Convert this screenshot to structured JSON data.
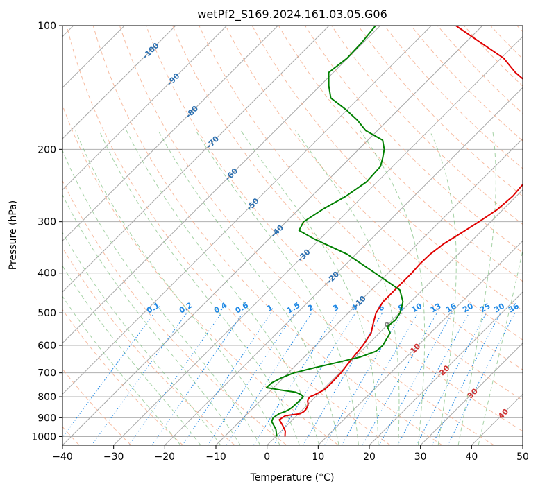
{
  "chart_data": {
    "type": "line",
    "title": "wetPf2_S169.2024.161.03.05.G06",
    "xlabel": "Temperature (°C)",
    "ylabel": "Pressure (hPa)",
    "xlim": [
      -40,
      50
    ],
    "ylim": [
      1050,
      100
    ],
    "y_scale": "log",
    "grid": true,
    "x_ticks": [
      -40,
      -30,
      -20,
      -10,
      0,
      10,
      20,
      30,
      40,
      50
    ],
    "y_ticks": [
      1000,
      900,
      800,
      700,
      600,
      500,
      400,
      300,
      200,
      100
    ],
    "colors": {
      "temperature": "#e00000",
      "dewpoint": "#008000",
      "dry_adiabat": "#f4a582",
      "moist_adiabat": "#7fbf7f",
      "mixing_ratio": "#1e88e5",
      "isotherm_label": "#2b6fb0",
      "isotherm_label_warm": "#d03030"
    },
    "isotherm_labels": [
      {
        "text": "-100",
        "t": -100,
        "p": 115
      },
      {
        "text": "-90",
        "t": -90,
        "p": 135
      },
      {
        "text": "-80",
        "t": -80,
        "p": 162
      },
      {
        "text": "-70",
        "t": -70,
        "p": 192
      },
      {
        "text": "-60",
        "t": -60,
        "p": 230
      },
      {
        "text": "-50",
        "t": -50,
        "p": 272
      },
      {
        "text": "-40",
        "t": -40,
        "p": 316
      },
      {
        "text": "-30",
        "t": -30,
        "p": 362
      },
      {
        "text": "-20",
        "t": -20,
        "p": 410
      },
      {
        "text": "-10",
        "t": -10,
        "p": 470
      },
      {
        "text": "0",
        "t": 0,
        "p": 535
      },
      {
        "text": "10",
        "t": 10,
        "p": 610
      },
      {
        "text": "20",
        "t": 20,
        "p": 690
      },
      {
        "text": "30",
        "t": 30,
        "p": 785
      },
      {
        "text": "40",
        "t": 40,
        "p": 880
      }
    ],
    "mixing_ratio_labels": [
      "0.1",
      "0.2",
      "0.4",
      "0.6",
      "1",
      "1.5",
      "2",
      "3",
      "4",
      "6",
      "8",
      "10",
      "13",
      "16",
      "20",
      "25",
      "30",
      "36"
    ],
    "mixing_ratio_values": [
      0.1,
      0.2,
      0.4,
      0.6,
      1,
      1.5,
      2,
      3,
      4,
      6,
      8,
      10,
      13,
      16,
      20,
      25,
      30,
      36
    ],
    "series": [
      {
        "id": "temperature",
        "pressure": [
          1000,
          970,
          940,
          910,
          890,
          880,
          870,
          860,
          850,
          840,
          830,
          820,
          810,
          800,
          790,
          780,
          770,
          760,
          750,
          700,
          650,
          600,
          560,
          530,
          500,
          470,
          440,
          400,
          380,
          360,
          340,
          320,
          300,
          280,
          260,
          240,
          220,
          200,
          180,
          170,
          160,
          150,
          140,
          130,
          120,
          110,
          100
        ],
        "temperature": [
          1.8,
          0.8,
          -0.8,
          -2.6,
          -2.2,
          0.3,
          0.6,
          0.6,
          0.4,
          0.2,
          -0.2,
          -0.7,
          -1.0,
          -1.1,
          -0.5,
          -0.1,
          0.3,
          0.4,
          0.4,
          0.3,
          -0.3,
          -0.8,
          -1.6,
          -3.1,
          -4.6,
          -5.4,
          -5.4,
          -5.4,
          -5.6,
          -5.5,
          -4.9,
          -3.6,
          -2.3,
          -1.1,
          -0.7,
          -1.1,
          -2.6,
          -4.6,
          -7.3,
          -9.1,
          -11.9,
          -14.8,
          -18.8,
          -24.4,
          -29.5,
          -37.0,
          -45.2
        ]
      },
      {
        "id": "dewpoint",
        "pressure": [
          1000,
          960,
          920,
          900,
          880,
          870,
          860,
          850,
          830,
          800,
          790,
          780,
          770,
          760,
          740,
          720,
          700,
          680,
          660,
          640,
          620,
          600,
          580,
          560,
          540,
          520,
          500,
          470,
          440,
          400,
          360,
          330,
          315,
          300,
          280,
          260,
          240,
          220,
          210,
          200,
          190,
          180,
          170,
          160,
          150,
          140,
          130,
          120,
          110,
          100
        ],
        "dewpoint": [
          0.2,
          -1.4,
          -3.7,
          -4.2,
          -3.8,
          -3.1,
          -2.7,
          -2.5,
          -2.4,
          -2.4,
          -3.3,
          -4.8,
          -8.3,
          -11.4,
          -11.3,
          -10.4,
          -8.9,
          -5.9,
          -2.4,
          1.0,
          2.9,
          3.1,
          2.6,
          2.1,
          0.3,
          0.6,
          0.1,
          -1.5,
          -4.4,
          -12.6,
          -21.7,
          -31.3,
          -35.8,
          -36.6,
          -35.3,
          -33.3,
          -32.1,
          -32.4,
          -33.6,
          -35.0,
          -37.1,
          -42.3,
          -45.9,
          -50.3,
          -55.5,
          -58.3,
          -60.9,
          -60.1,
          -60.3,
          -60.9
        ]
      }
    ]
  }
}
